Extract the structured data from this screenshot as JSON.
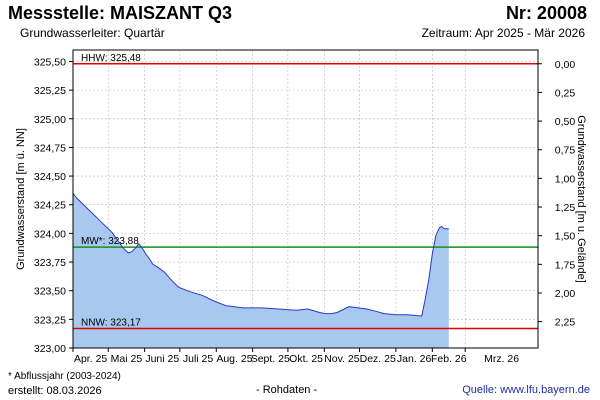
{
  "header": {
    "title": "Messstelle: MAISZANT Q3",
    "number": "Nr: 20008",
    "aquifer": "Grundwasserleiter: Quartär",
    "period": "Zeitraum: Apr 2025 - Mär 2026"
  },
  "footer": {
    "footnote": "* Abflussjahr (2003-2024)",
    "created": "erstellt:  08.03.2026",
    "rawdata": "- Rohdaten -",
    "source": "Quelle:  www.lfu.bayern.de"
  },
  "colors": {
    "fill": "#a8c8f0",
    "line": "#2a39c8",
    "hhw": "#e00000",
    "mw": "#179117",
    "nnw": "#e00000",
    "grid": "#bbbbbb"
  },
  "chart_data": {
    "type": "area",
    "ylabel": "Grundwasserstand [m ü. NN]",
    "y2label": "Grundwasserstand [m u. Gelände]",
    "ylim": [
      323.0,
      325.6
    ],
    "y_ticks": [
      "325,50",
      "325,25",
      "325,00",
      "324,75",
      "324,50",
      "324,25",
      "324,00",
      "323,75",
      "323,50",
      "323,25",
      "323,00"
    ],
    "y_tick_values": [
      325.5,
      325.25,
      325.0,
      324.75,
      324.5,
      324.25,
      324.0,
      323.75,
      323.5,
      323.25,
      323.0
    ],
    "y2_ticks": [
      "0,00",
      "0,25",
      "0,50",
      "0,75",
      "1,00",
      "1,25",
      "1,50",
      "1,75",
      "2,00",
      "2,25"
    ],
    "y2_tick_values": [
      0.0,
      0.25,
      0.5,
      0.75,
      1.0,
      1.25,
      1.5,
      1.75,
      2.0,
      2.25
    ],
    "y2_zero_level": 325.48,
    "x_range_days": [
      0,
      396
    ],
    "x_ticks": [
      "Apr. 25",
      "Mai 25",
      "Juni 25",
      "Juli 25",
      "Aug. 25",
      "Sept. 25",
      "Okt. 25",
      "Nov. 25",
      "Dez. 25",
      "Jan. 26",
      "Feb. 26",
      "Mrz. 26"
    ],
    "x_tick_positions": [
      0,
      30,
      61,
      91,
      122,
      153,
      183,
      214,
      244,
      275,
      306,
      334
    ],
    "reference_lines": [
      {
        "name": "HHW",
        "label": "HHW: 325,48",
        "value": 325.48
      },
      {
        "name": "MW*",
        "label": "MW*: 323,88",
        "value": 323.88
      },
      {
        "name": "NNW",
        "label": "NNW: 323,17",
        "value": 323.17
      }
    ],
    "series": [
      {
        "x": [
          0,
          3,
          8,
          14,
          20,
          26,
          33,
          38,
          43,
          47,
          50,
          53,
          56,
          59,
          62,
          65,
          68,
          73,
          78,
          83,
          90,
          100,
          110,
          120,
          130,
          145,
          160,
          175,
          190,
          200,
          210,
          215,
          220,
          225,
          235,
          243,
          250,
          258,
          265,
          275,
          285,
          295,
          297,
          300,
          303,
          306,
          309,
          312,
          314,
          316,
          320
        ],
        "y": [
          324.35,
          324.31,
          324.26,
          324.2,
          324.14,
          324.08,
          324.01,
          323.94,
          323.87,
          323.83,
          323.84,
          323.87,
          323.91,
          323.87,
          323.82,
          323.78,
          323.73,
          323.7,
          323.66,
          323.6,
          323.53,
          323.49,
          323.46,
          323.41,
          323.37,
          323.35,
          323.35,
          323.34,
          323.33,
          323.34,
          323.31,
          323.3,
          323.3,
          323.31,
          323.36,
          323.35,
          323.34,
          323.32,
          323.3,
          323.29,
          323.29,
          323.28,
          323.28,
          323.43,
          323.6,
          323.82,
          323.98,
          324.05,
          324.06,
          324.04,
          324.04
        ]
      }
    ]
  }
}
